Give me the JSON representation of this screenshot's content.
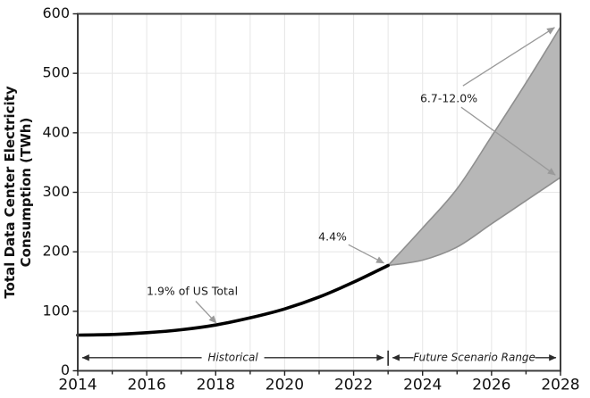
{
  "figure": {
    "background": "#ffffff",
    "grid_color": "#e8e8e8",
    "spine_color": "#3d3d3d",
    "tick_color": "#222222",
    "label_color": "#111111"
  },
  "chart_data": {
    "type": "line",
    "title": "",
    "xlabel": "",
    "ylabel_lines": [
      "Total Data Center Electricity",
      "Consumption (TWh)"
    ],
    "xlim": [
      2014,
      2028
    ],
    "ylim": [
      0,
      600
    ],
    "x_tick_labels": [
      2014,
      2016,
      2018,
      2020,
      2022,
      2024,
      2026,
      2028
    ],
    "x_ticks_all": [
      2014,
      2015,
      2016,
      2017,
      2018,
      2019,
      2020,
      2021,
      2022,
      2023,
      2024,
      2025,
      2026,
      2027,
      2028
    ],
    "y_ticks": [
      0,
      100,
      200,
      300,
      400,
      500,
      600
    ],
    "grid": true,
    "series": [
      {
        "name": "Historical",
        "kind": "line",
        "color": "#000000",
        "width": 3.6,
        "x": [
          2014,
          2015,
          2016,
          2017,
          2018,
          2019,
          2020,
          2021,
          2022,
          2023
        ],
        "values": [
          60,
          61,
          64,
          69,
          77,
          89,
          104,
          124,
          149,
          177
        ]
      },
      {
        "name": "Future Scenario Range",
        "kind": "band",
        "fill": "#b7b7b7",
        "edge": "#8f8f8f",
        "edge_width": 1.6,
        "x": [
          2023,
          2024,
          2025,
          2026,
          2027,
          2028
        ],
        "low": [
          177,
          186,
          208,
          247,
          286,
          325
        ],
        "high": [
          177,
          240,
          306,
          394,
          484,
          578
        ]
      }
    ],
    "annotations": [
      {
        "text": "1.9% of US Total",
        "x": 2017.32,
        "y": 133,
        "arrows": [
          {
            "x1": 2017.42,
            "y1": 117,
            "x2": 2018.02,
            "y2": 80
          }
        ]
      },
      {
        "text": "4.4%",
        "x": 2021.39,
        "y": 224,
        "arrows": [
          {
            "x1": 2021.85,
            "y1": 212,
            "x2": 2022.88,
            "y2": 181
          }
        ]
      },
      {
        "text": "6.7-12.0%",
        "x": 2024.76,
        "y": 457,
        "arrows": [
          {
            "x1": 2025.17,
            "y1": 479,
            "x2": 2027.83,
            "y2": 577
          },
          {
            "x1": 2025.12,
            "y1": 443,
            "x2": 2027.85,
            "y2": 329
          }
        ]
      }
    ],
    "range_markers": {
      "y": 22,
      "divider_year": 2023,
      "items": [
        {
          "label": "Historical",
          "from": 2014,
          "to": 2023
        },
        {
          "label": "Future Scenario Range",
          "from": 2023,
          "to": 2028
        }
      ]
    },
    "annotation_arrow_color": "#9a9a9a",
    "range_arrow_color": "#2b2b2b"
  }
}
